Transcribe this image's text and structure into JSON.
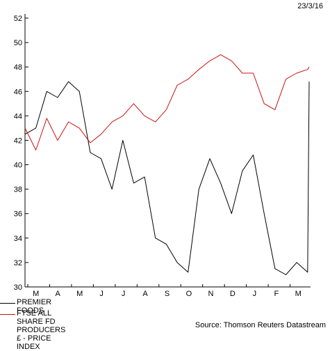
{
  "date_stamp": "23/3/16",
  "source": "Source: Thomson Reuters Datastream",
  "chart_data": {
    "type": "line",
    "x_ticks": [
      "M",
      "A",
      "M",
      "J",
      "J",
      "A",
      "S",
      "O",
      "N",
      "D",
      "J",
      "F",
      "M"
    ],
    "y_ticks": [
      30,
      32,
      34,
      36,
      38,
      40,
      42,
      44,
      46,
      48,
      50,
      52
    ],
    "ylim": [
      30,
      52
    ],
    "grid": false,
    "legend_position": "bottom-left",
    "x": [
      "2015-03-23",
      "2015-04-06",
      "2015-04-20",
      "2015-05-04",
      "2015-05-18",
      "2015-06-01",
      "2015-06-15",
      "2015-06-29",
      "2015-07-13",
      "2015-07-27",
      "2015-08-10",
      "2015-08-24",
      "2015-09-07",
      "2015-09-21",
      "2015-10-05",
      "2015-10-19",
      "2015-11-02",
      "2015-11-16",
      "2015-11-30",
      "2015-12-14",
      "2015-12-28",
      "2016-01-11",
      "2016-01-25",
      "2016-02-08",
      "2016-02-22",
      "2016-03-07",
      "2016-03-21",
      "2016-03-23"
    ],
    "series": [
      {
        "name": "PREMIER FOODS",
        "color": "#000000",
        "values": [
          42.5,
          43.0,
          46.0,
          45.5,
          46.8,
          46.0,
          41.0,
          40.5,
          38.0,
          42.0,
          38.5,
          39.0,
          34.0,
          33.5,
          32.0,
          31.2,
          38.0,
          40.5,
          38.5,
          36.0,
          39.5,
          40.8,
          36.0,
          31.5,
          31.0,
          32.0,
          31.2,
          46.8
        ]
      },
      {
        "name": "FTSE ALL SHARE FD PRODUCERS £ - PRICE INDEX",
        "color": "#cc1111",
        "values": [
          43.0,
          41.2,
          43.8,
          42.0,
          43.5,
          43.0,
          41.8,
          42.5,
          43.5,
          44.0,
          45.0,
          44.0,
          43.5,
          44.5,
          46.5,
          47.0,
          47.8,
          48.5,
          49.0,
          48.5,
          47.5,
          47.5,
          45.0,
          44.5,
          47.0,
          47.5,
          47.8,
          48.0
        ]
      }
    ]
  }
}
